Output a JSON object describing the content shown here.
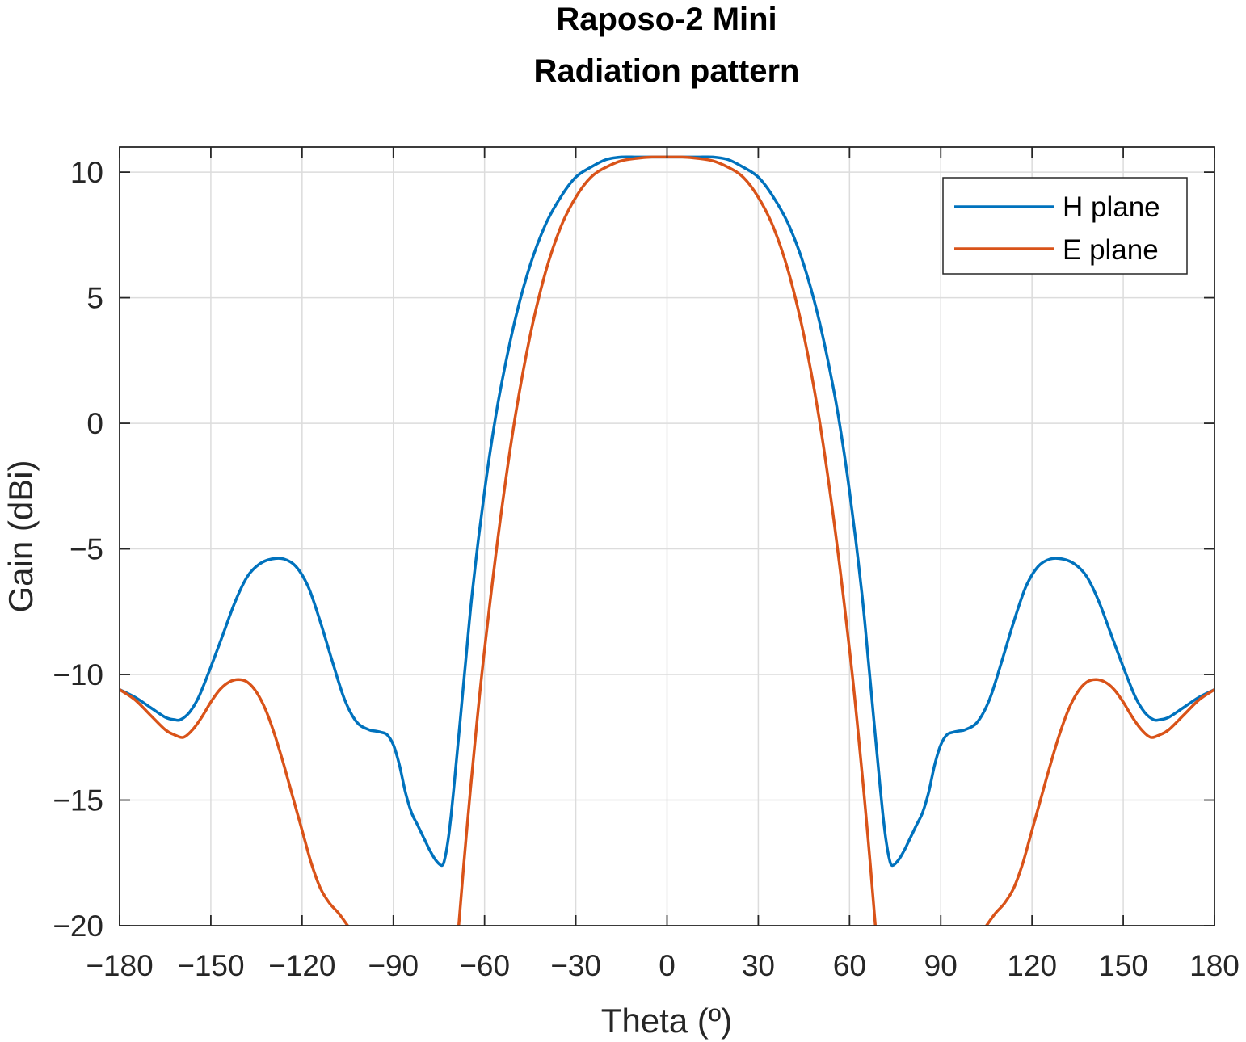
{
  "chart_data": {
    "type": "line",
    "title": [
      "Raposo-2 Mini",
      "Radiation pattern"
    ],
    "xlabel": "Theta (º)",
    "ylabel": "Gain (dBi)",
    "xlim": [
      -180,
      180
    ],
    "ylim": [
      -20,
      11
    ],
    "xticks": [
      -180,
      -150,
      -120,
      -90,
      -60,
      -30,
      0,
      30,
      60,
      90,
      120,
      150,
      180
    ],
    "yticks": [
      10,
      5,
      0,
      -5,
      -10,
      -15,
      -20
    ],
    "grid": true,
    "legend_position": "top-right",
    "series": [
      {
        "name": "H plane",
        "color": "#0072BD",
        "x": [
          -180,
          -175,
          -170,
          -165,
          -162,
          -160,
          -157,
          -154,
          -150,
          -146,
          -142,
          -138,
          -134,
          -130,
          -126,
          -122,
          -118,
          -114,
          -110,
          -106,
          -102,
          -98,
          -96,
          -94,
          -92,
          -90,
          -88,
          -86,
          -84,
          -82,
          -80,
          -78,
          -76,
          -74,
          -73,
          -72,
          -71,
          -70,
          -69,
          -68,
          -67,
          -66,
          -65,
          -64,
          -62,
          -60,
          -58,
          -55,
          -50,
          -45,
          -40,
          -35,
          -30,
          -25,
          -20,
          -15,
          -10,
          -5,
          0,
          5,
          10,
          15,
          20,
          25,
          30,
          35,
          40,
          45,
          50,
          55,
          58,
          60,
          62,
          64,
          65,
          66,
          67,
          68,
          69,
          70,
          71,
          72,
          73,
          74,
          76,
          78,
          80,
          82,
          84,
          86,
          88,
          90,
          92,
          94,
          96,
          98,
          102,
          106,
          110,
          114,
          118,
          122,
          126,
          130,
          134,
          138,
          142,
          146,
          150,
          154,
          157,
          160,
          162,
          165,
          170,
          175,
          180
        ],
        "y": [
          -10.6,
          -10.9,
          -11.3,
          -11.7,
          -11.8,
          -11.8,
          -11.5,
          -10.9,
          -9.7,
          -8.4,
          -7.1,
          -6.1,
          -5.6,
          -5.4,
          -5.4,
          -5.7,
          -6.5,
          -7.9,
          -9.5,
          -11.0,
          -11.9,
          -12.2,
          -12.25,
          -12.3,
          -12.4,
          -12.8,
          -13.6,
          -14.7,
          -15.5,
          -16.0,
          -16.5,
          -17.0,
          -17.4,
          -17.6,
          -17.3,
          -16.6,
          -15.6,
          -14.4,
          -13.1,
          -11.8,
          -10.5,
          -9.2,
          -7.9,
          -6.7,
          -4.6,
          -2.7,
          -1.0,
          1.2,
          4.1,
          6.3,
          7.9,
          9.0,
          9.8,
          10.2,
          10.5,
          10.6,
          10.6,
          10.6,
          10.6,
          10.6,
          10.6,
          10.6,
          10.5,
          10.2,
          9.8,
          9.0,
          7.9,
          6.3,
          4.1,
          1.2,
          -1.0,
          -2.7,
          -4.6,
          -6.7,
          -7.9,
          -9.2,
          -10.5,
          -11.8,
          -13.1,
          -14.4,
          -15.6,
          -16.6,
          -17.3,
          -17.6,
          -17.4,
          -17.0,
          -16.5,
          -16.0,
          -15.5,
          -14.7,
          -13.6,
          -12.8,
          -12.4,
          -12.3,
          -12.25,
          -12.2,
          -11.9,
          -11.0,
          -9.5,
          -7.9,
          -6.5,
          -5.7,
          -5.4,
          -5.4,
          -5.6,
          -6.1,
          -7.1,
          -8.4,
          -9.7,
          -10.9,
          -11.5,
          -11.8,
          -11.8,
          -11.7,
          -11.3,
          -10.9,
          -10.6
        ]
      },
      {
        "name": "E plane",
        "color": "#D95319",
        "x": [
          -180,
          -175,
          -170,
          -165,
          -162,
          -159,
          -156,
          -153,
          -150,
          -147,
          -144,
          -141,
          -138,
          -135,
          -132,
          -129,
          -126,
          -123,
          -120,
          -117,
          -114,
          -111,
          -108,
          -105,
          -68.5,
          -66,
          -63,
          -60,
          -55,
          -50,
          -45,
          -40,
          -35,
          -30,
          -25,
          -20,
          -15,
          -10,
          -5,
          0,
          5,
          10,
          15,
          20,
          25,
          30,
          35,
          40,
          45,
          50,
          55,
          60,
          63,
          66,
          68.5,
          105,
          108,
          111,
          114,
          117,
          120,
          123,
          126,
          129,
          132,
          135,
          138,
          141,
          144,
          147,
          150,
          153,
          156,
          159,
          162,
          165,
          170,
          175,
          180
        ],
        "y": [
          -10.6,
          -11.0,
          -11.6,
          -12.2,
          -12.4,
          -12.5,
          -12.2,
          -11.7,
          -11.1,
          -10.6,
          -10.3,
          -10.2,
          -10.3,
          -10.7,
          -11.4,
          -12.4,
          -13.6,
          -14.9,
          -16.2,
          -17.5,
          -18.5,
          -19.1,
          -19.5,
          -20.0,
          -20.0,
          -16.4,
          -12.5,
          -9.0,
          -4.0,
          0.2,
          3.5,
          6.0,
          7.8,
          9.0,
          9.8,
          10.2,
          10.45,
          10.55,
          10.6,
          10.6,
          10.6,
          10.55,
          10.45,
          10.2,
          9.8,
          9.0,
          7.8,
          6.0,
          3.5,
          0.2,
          -4.0,
          -9.0,
          -12.5,
          -16.4,
          -20.0,
          -20.0,
          -19.5,
          -19.1,
          -18.5,
          -17.5,
          -16.2,
          -14.9,
          -13.6,
          -12.4,
          -11.4,
          -10.7,
          -10.3,
          -10.2,
          -10.3,
          -10.6,
          -11.1,
          -11.7,
          -12.2,
          -12.5,
          -12.4,
          -12.2,
          -11.6,
          -11.0,
          -10.6
        ]
      }
    ]
  }
}
